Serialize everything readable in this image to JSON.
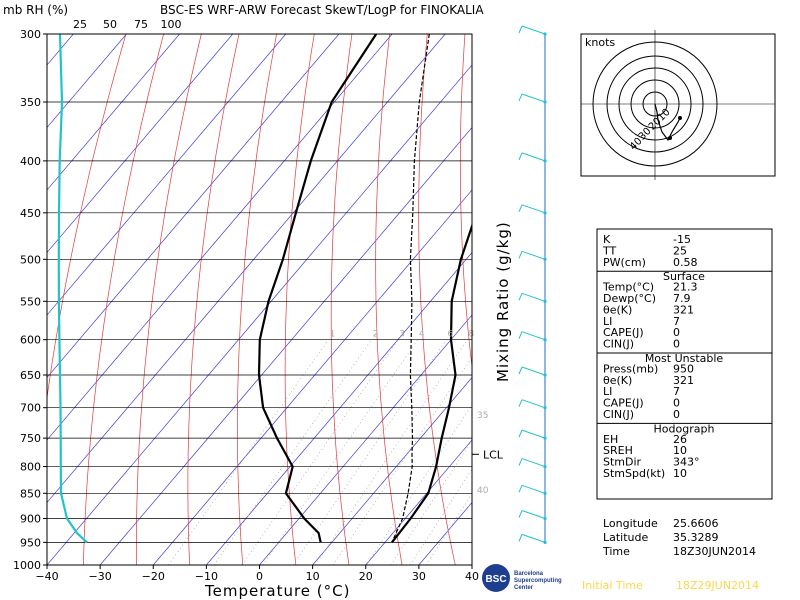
{
  "header": {
    "units_label": "mb  RH  (%)",
    "title": "BSC-ES  WRF-ARW  Forecast  SkewT/LogP  for  FINOKALIA",
    "rh_ticks": [
      "25",
      "50",
      "75",
      "100"
    ]
  },
  "chart_data": {
    "type": "skewt",
    "pressure_levels": [
      300,
      350,
      400,
      450,
      500,
      550,
      600,
      650,
      700,
      750,
      800,
      850,
      900,
      950,
      1000
    ],
    "temperature_ticks": [
      -40,
      -30,
      -20,
      -10,
      0,
      10,
      20,
      30,
      40
    ],
    "xlim": [
      -40,
      40
    ],
    "ylim": [
      1000,
      300
    ],
    "xlabel": "Temperature  (°C)",
    "right_axis_label": "Mixing  Ratio  (g/kg)",
    "mixing_ratio_labels": [
      "1",
      "2",
      "3",
      "4",
      "6",
      "8",
      "10",
      "15",
      "20",
      "25",
      "30"
    ],
    "theta_labels": [
      "35",
      "40"
    ],
    "lcl_label": "LCL",
    "lcl_pressure": 778,
    "series": [
      {
        "type": "rh_profile",
        "color": "#22c3c8",
        "points": [
          [
            300,
            0
          ],
          [
            350,
            2
          ],
          [
            400,
            -0.3
          ],
          [
            450,
            -1
          ],
          [
            500,
            -1.2
          ],
          [
            550,
            -1.1
          ],
          [
            600,
            -0.6
          ],
          [
            650,
            0
          ],
          [
            700,
            0.5
          ],
          [
            750,
            0.7
          ],
          [
            800,
            0.8
          ],
          [
            850,
            1
          ],
          [
            900,
            7
          ],
          [
            930,
            17
          ],
          [
            950,
            27
          ]
        ]
      },
      {
        "type": "temperature",
        "color": "#000",
        "points": [
          [
            300,
            -34.5
          ],
          [
            350,
            -25.5
          ],
          [
            400,
            -20.5
          ],
          [
            450,
            -15.5
          ],
          [
            500,
            -11
          ],
          [
            550,
            -6
          ],
          [
            600,
            0
          ],
          [
            650,
            6.5
          ],
          [
            700,
            10.5
          ],
          [
            750,
            14
          ],
          [
            800,
            17.5
          ],
          [
            850,
            20.3
          ],
          [
            900,
            21
          ],
          [
            950,
            21.3
          ]
        ]
      },
      {
        "type": "dewpoint",
        "color": "#000",
        "points": [
          [
            300,
            -63
          ],
          [
            350,
            -60.5
          ],
          [
            400,
            -55
          ],
          [
            450,
            -49.5
          ],
          [
            500,
            -44.5
          ],
          [
            550,
            -40.5
          ],
          [
            600,
            -36
          ],
          [
            650,
            -30.5
          ],
          [
            700,
            -24.5
          ],
          [
            750,
            -17
          ],
          [
            800,
            -9.5
          ],
          [
            850,
            -6.5
          ],
          [
            900,
            1
          ],
          [
            930,
            6
          ],
          [
            950,
            7.9
          ]
        ]
      },
      {
        "type": "parcel",
        "color": "#000",
        "dash": true,
        "points": [
          [
            300,
            -53
          ],
          [
            350,
            -44
          ],
          [
            400,
            -35.5
          ],
          [
            450,
            -27.5
          ],
          [
            500,
            -20.5
          ],
          [
            550,
            -13.5
          ],
          [
            600,
            -7.5
          ],
          [
            650,
            -2
          ],
          [
            700,
            3.5
          ],
          [
            750,
            8.5
          ],
          [
            778,
            11
          ],
          [
            800,
            13
          ],
          [
            850,
            16.5
          ],
          [
            900,
            19.5
          ],
          [
            950,
            21.3
          ]
        ]
      }
    ],
    "wind_barbs_pressures": [
      300,
      350,
      400,
      450,
      500,
      550,
      600,
      650,
      700,
      750,
      800,
      850,
      900,
      950
    ]
  },
  "hodograph": {
    "units_label": "knots",
    "ring_labels": [
      "10",
      "20",
      "30",
      "40"
    ]
  },
  "indices": {
    "group1": [
      {
        "label": "K",
        "value": "-15"
      },
      {
        "label": "TT",
        "value": "25"
      },
      {
        "label": "PW(cm)",
        "value": "0.58"
      }
    ],
    "surface": {
      "title": "Surface",
      "rows": [
        {
          "label": "Temp(°C)",
          "value": "21.3"
        },
        {
          "label": "Dewp(°C)",
          "value": "7.9"
        },
        {
          "label": "θe(K)",
          "value": "321"
        },
        {
          "label": "LI",
          "value": "7"
        },
        {
          "label": "CAPE(J)",
          "value": "0"
        },
        {
          "label": "CIN(J)",
          "value": "0"
        }
      ]
    },
    "most_unstable": {
      "title": "Most Unstable",
      "rows": [
        {
          "label": "Press(mb)",
          "value": "950"
        },
        {
          "label": "θe(K)",
          "value": "321"
        },
        {
          "label": "LI",
          "value": "7"
        },
        {
          "label": "CAPE(J)",
          "value": "0"
        },
        {
          "label": "CIN(J)",
          "value": "0"
        }
      ]
    },
    "hodograph_stats": {
      "title": "Hodograph",
      "rows": [
        {
          "label": "EH",
          "value": "26"
        },
        {
          "label": "SREH",
          "value": "10"
        },
        {
          "label": "StmDir",
          "value": "343°"
        },
        {
          "label": "StmSpd(kt)",
          "value": "10"
        }
      ]
    }
  },
  "location": {
    "rows": [
      {
        "label": "Longitude",
        "value": "25.6606"
      },
      {
        "label": "Latitude",
        "value": "35.3289"
      },
      {
        "label": "Time",
        "value": "18Z30JUN2014"
      }
    ]
  },
  "footer": {
    "initial_time_label": "Initial Time",
    "initial_time_value": "18Z29JUN2014",
    "logo_text": [
      "Barcelona",
      "Supercomputing",
      "Center"
    ],
    "logo_abbrev": "BSC"
  }
}
